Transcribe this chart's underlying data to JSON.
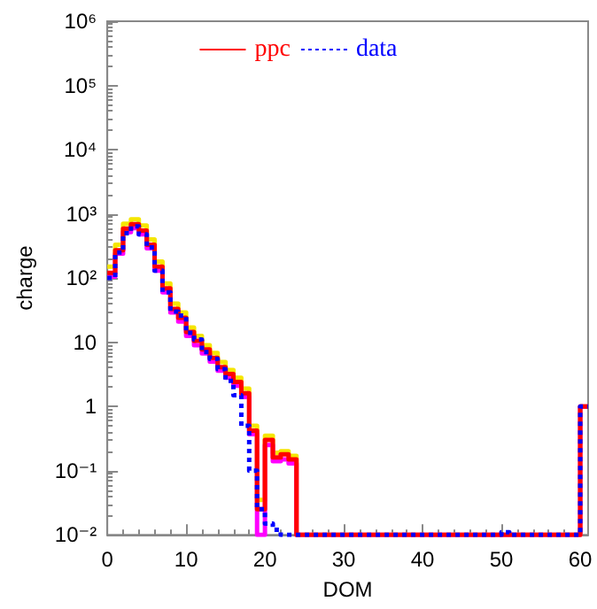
{
  "chart_data": {
    "type": "histogram",
    "xlabel": "DOM",
    "ylabel": "charge",
    "bins": [
      0,
      1,
      2,
      3,
      4,
      5,
      6,
      7,
      8,
      9,
      10,
      11,
      12,
      13,
      14,
      15,
      16,
      17,
      18,
      19,
      20,
      21,
      22,
      23,
      24,
      25,
      26,
      27,
      28,
      29,
      30,
      31,
      32,
      33,
      34,
      35,
      36,
      37,
      38,
      39,
      40,
      41,
      42,
      43,
      44,
      45,
      46,
      47,
      48,
      49,
      50,
      51,
      52,
      53,
      54,
      55,
      56,
      57,
      58,
      59,
      60,
      61
    ],
    "series": [
      {
        "color": "#f5e600",
        "values": [
          150,
          330,
          700,
          820,
          660,
          400,
          180,
          82,
          40,
          29,
          17,
          12.5,
          9,
          6.8,
          4.9,
          3.7,
          2.8,
          1.9,
          0.5,
          0.035,
          0.35,
          0.19,
          0.2,
          0.17,
          null,
          null,
          null,
          null,
          null,
          null,
          null,
          null,
          null,
          null,
          null,
          null,
          null,
          null,
          null,
          null,
          null,
          null,
          null,
          null,
          null,
          null,
          null,
          null,
          null,
          null,
          null,
          null,
          null,
          null,
          null,
          null,
          null,
          null,
          null,
          null,
          1
        ]
      },
      {
        "color": "#ff00ff",
        "values": [
          105,
          240,
          520,
          600,
          480,
          290,
          130,
          60,
          29,
          21,
          12.5,
          9,
          6.7,
          5,
          3.6,
          2.8,
          2.1,
          1.4,
          0.37,
          null,
          0.25,
          0.14,
          0.15,
          0.13,
          null,
          null,
          null,
          null,
          null,
          null,
          null,
          null,
          null,
          null,
          null,
          null,
          null,
          null,
          null,
          null,
          null,
          null,
          null,
          null,
          null,
          null,
          null,
          null,
          null,
          null,
          null,
          null,
          null,
          null,
          null,
          null,
          null,
          null,
          null,
          null,
          1
        ]
      },
      {
        "name": "ppc",
        "color": "#ff0000",
        "line_style": "solid",
        "values": [
          120,
          270,
          590,
          690,
          550,
          330,
          150,
          69,
          33,
          24,
          14.5,
          10.5,
          7.7,
          5.7,
          4.1,
          3.2,
          2.4,
          1.6,
          0.42,
          0.025,
          0.3,
          0.16,
          0.18,
          0.15,
          null,
          null,
          null,
          null,
          null,
          null,
          null,
          null,
          null,
          null,
          null,
          null,
          null,
          null,
          null,
          null,
          null,
          null,
          null,
          null,
          null,
          null,
          null,
          null,
          null,
          null,
          null,
          null,
          null,
          null,
          null,
          null,
          null,
          null,
          null,
          null,
          1
        ]
      },
      {
        "name": "data",
        "color": "#0000ff",
        "line_style": "dotted",
        "values": [
          100,
          250,
          500,
          640,
          480,
          300,
          130,
          60,
          30,
          26,
          14,
          11,
          7,
          5.5,
          3.8,
          2.5,
          1.5,
          0.5,
          0.1,
          0.025,
          0.015,
          0.012,
          null,
          null,
          null,
          null,
          null,
          null,
          null,
          null,
          null,
          null,
          null,
          null,
          null,
          null,
          null,
          null,
          null,
          null,
          null,
          null,
          null,
          null,
          null,
          null,
          null,
          null,
          null,
          null,
          0.011,
          null,
          null,
          null,
          null,
          null,
          null,
          null,
          null,
          null,
          1
        ]
      }
    ],
    "xlim": [
      0,
      61
    ],
    "xticks": [
      0,
      10,
      20,
      30,
      40,
      50,
      60
    ],
    "ylim": [
      0.01,
      1000000
    ],
    "log": "y",
    "yticks": [
      {
        "value": 0.01,
        "label": "10⁻²"
      },
      {
        "value": 0.1,
        "label": "10⁻¹"
      },
      1,
      10,
      {
        "value": 100,
        "label": "10²"
      },
      {
        "value": 1000,
        "label": "10³"
      },
      {
        "value": 10000,
        "label": "10⁴"
      },
      {
        "value": 100000,
        "label": "10⁵"
      },
      {
        "value": 1000000,
        "label": "10⁶"
      }
    ],
    "grid": false,
    "legend": "top",
    "marker": "none"
  }
}
